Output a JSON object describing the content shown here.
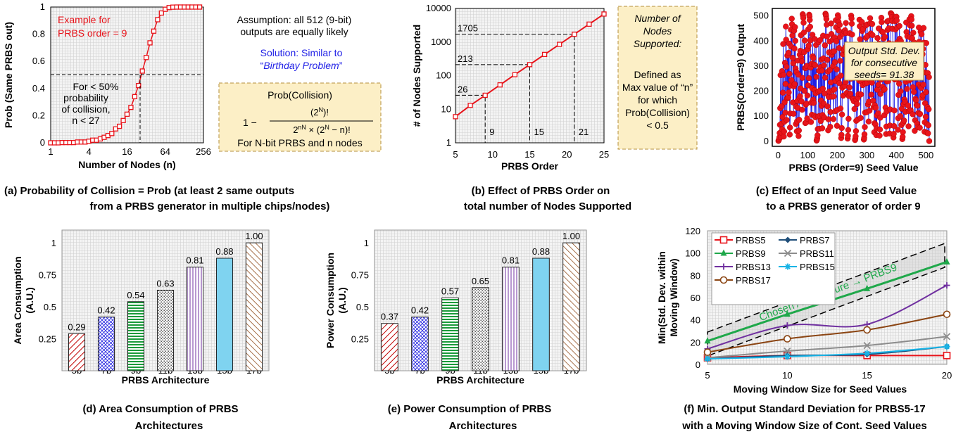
{
  "colors": {
    "red": "#e8141b",
    "blue": "#1f1fe6",
    "green": "#1fa84a",
    "box": "#fcefc6",
    "boxEdge": "#b48f3c",
    "gridBg": "#e6e6e6"
  },
  "panel_a": {
    "annotation": [
      "Example for",
      "PRBS order = 9"
    ],
    "region_note": [
      "For < 50%",
      "probability",
      "of collision,",
      "n < 27"
    ],
    "assumption": [
      "Assumption: all 512 (9-bit)",
      "outputs are equally likely"
    ],
    "solution_line1": "Solution: Similar to",
    "solution_line2_prefix": "“",
    "solution_line2_italic": "Birthday Problem",
    "solution_line2_suffix": "”",
    "formula_title": "Prob(Collision)",
    "formula_lhs": "1 −",
    "formula_num": "(2",
    "formula_num_sup": "N",
    "formula_num_end": ")!",
    "formula_den": "2",
    "formula_den_sup": "nN",
    "formula_den_end": " × (2",
    "formula_den_sup2": "N",
    "formula_den_tail": " − n)!",
    "formula_note": "For N-bit PRBS and n nodes",
    "caption": [
      "(a)  Probability of Collision = Prob (at least 2 same outputs",
      "from a PRBS generator in multiple chips/nodes)"
    ]
  },
  "panel_b": {
    "box_italic": [
      "Number of",
      "Nodes",
      "Supported:"
    ],
    "box_plain": [
      "Defined as",
      "Max value of “n”",
      "for which",
      "Prob(Collision)",
      "< 0.5"
    ],
    "caption": [
      "(b)  Effect of PRBS Order on",
      "total number of Nodes Supported"
    ]
  },
  "panel_c": {
    "box": [
      "Output Std. Dev.",
      "for consecutive",
      "seeds= 91.38"
    ],
    "caption": [
      "(c)  Effect of an Input Seed Value",
      "to a PRBS generator of order 9"
    ]
  },
  "panel_d": {
    "caption": [
      "(d)  Area Consumption of PRBS",
      "Architectures"
    ]
  },
  "panel_e": {
    "caption": [
      "(e)  Power Consumption of PRBS",
      "Architectures"
    ]
  },
  "panel_f": {
    "annotation": "Chosen Architecture → PRBS9",
    "caption": [
      "(f)  Min. Output Standard Deviation for PRBS5-17",
      "with a Moving Window Size of Cont. Seed Values"
    ]
  },
  "chart_data": [
    {
      "id": "a",
      "type": "line",
      "xlabel": "Number of Nodes (n)",
      "ylabel": "Prob (Same PRBS out)",
      "xscale": "log2",
      "xlim": [
        1,
        256
      ],
      "ylim": [
        0,
        1
      ],
      "xticks": [
        1,
        4,
        16,
        64,
        256
      ],
      "xtick_labels": [
        "1",
        "4",
        "16",
        "64",
        "256"
      ],
      "yticks": [
        0,
        0.2,
        0.4,
        0.6,
        0.8,
        1
      ],
      "ytick_labels": [
        "0",
        "0.2",
        "0.4",
        "0.6",
        "0.8",
        "1"
      ],
      "marker_stride": 1.1487,
      "series": [
        {
          "formula": "1 - 512!/(512^n (512-n)!)",
          "color": "#e8141b"
        }
      ],
      "threshold": {
        "y": 0.5,
        "x": 27
      }
    },
    {
      "id": "b",
      "type": "line",
      "xlabel": "PRBS Order",
      "ylabel": "# of Nodes Supported",
      "yscale": "log",
      "xlim": [
        5,
        25
      ],
      "ylim": [
        1,
        10000
      ],
      "xticks": [
        5,
        10,
        15,
        20,
        25
      ],
      "xtick_labels": [
        "5",
        "10",
        "15",
        "20",
        "25"
      ],
      "yticks": [
        1,
        10,
        100,
        1000,
        10000
      ],
      "ytick_labels": [
        "1",
        "10",
        "100",
        "1000",
        "10000"
      ],
      "x": [
        5,
        7,
        9,
        11,
        13,
        15,
        17,
        19,
        21,
        23,
        25
      ],
      "series": [
        {
          "values": [
            6,
            13,
            26,
            53,
            107,
            213,
            427,
            853,
            1705,
            3411,
            6822
          ],
          "color": "#e8141b"
        }
      ],
      "guides": [
        {
          "x": 9,
          "y": 26,
          "label": "26",
          "xlabel": "9"
        },
        {
          "x": 15,
          "y": 213,
          "label": "213",
          "xlabel": "15"
        },
        {
          "x": 21,
          "y": 1705,
          "label": "1705",
          "xlabel": "21"
        }
      ]
    },
    {
      "id": "c",
      "type": "scatter",
      "xlabel": "PRBS (Order=9) Seed Value",
      "ylabel": "PRBS(Order=9) Output",
      "xlim": [
        -20,
        530
      ],
      "ylim": [
        -20,
        530
      ],
      "xticks": [
        0,
        100,
        200,
        300,
        400,
        500
      ],
      "xtick_labels": [
        "0",
        "100",
        "200",
        "300",
        "400",
        "500"
      ],
      "yticks": [
        0,
        100,
        200,
        300,
        400,
        500
      ],
      "ytick_labels": [
        "0",
        "100",
        "200",
        "300",
        "400",
        "500"
      ],
      "series": [
        {
          "description": "511 seed values 1-511 vs. their PRBS-9 outputs (pseudo-random permutation)",
          "marker_color": "#e8141b",
          "line_color": "#1f1fe6"
        }
      ],
      "output_std_dev": 91.38
    },
    {
      "id": "d",
      "type": "bar",
      "xlabel": "PRBS Architecture",
      "ylabel": "Area Consumption (A.U.)",
      "ylim": [
        0,
        1.1
      ],
      "yticks": [
        0.25,
        0.5,
        0.75,
        1
      ],
      "ytick_labels": [
        "0.25",
        "0.5",
        "0.75",
        "1"
      ],
      "categories": [
        "5b",
        "7b",
        "9b",
        "11b",
        "13b",
        "15b",
        "17b"
      ],
      "values": [
        0.29,
        0.42,
        0.54,
        0.63,
        0.81,
        0.88,
        1.0
      ],
      "labels": [
        "0.29",
        "0.42",
        "0.54",
        "0.63",
        "0.81",
        "0.88",
        "1.00"
      ]
    },
    {
      "id": "e",
      "type": "bar",
      "xlabel": "PRBS Architecture",
      "ylabel": "Power Consumption (A.U.)",
      "ylim": [
        0,
        1.1
      ],
      "yticks": [
        0.25,
        0.5,
        0.75,
        1
      ],
      "ytick_labels": [
        "0.25",
        "0.5",
        "0.75",
        "1"
      ],
      "categories": [
        "5b",
        "7b",
        "9b",
        "11b",
        "13b",
        "15b",
        "17b"
      ],
      "values": [
        0.37,
        0.42,
        0.57,
        0.65,
        0.81,
        0.88,
        1.0
      ],
      "labels": [
        "0.37",
        "0.42",
        "0.57",
        "0.65",
        "0.81",
        "0.88",
        "1.00"
      ]
    },
    {
      "id": "f",
      "type": "line",
      "xlabel": "Moving Window Size for Seed Values",
      "ylabel": "Min(Std. Dev. within Moving Window)",
      "xlim": [
        5,
        20
      ],
      "ylim": [
        0,
        120
      ],
      "xticks": [
        5,
        10,
        15,
        20
      ],
      "xtick_labels": [
        "5",
        "10",
        "15",
        "20"
      ],
      "yticks": [
        0,
        20,
        40,
        60,
        80,
        100,
        120
      ],
      "ytick_labels": [
        "0",
        "20",
        "40",
        "60",
        "80",
        "100",
        "120"
      ],
      "legend_position": "top-left",
      "x": [
        5,
        10,
        15,
        20
      ],
      "series": [
        {
          "name": "PRBS5",
          "values": [
            6,
            8,
            8,
            8
          ],
          "color": "#e8141b",
          "marker": "square"
        },
        {
          "name": "PRBS7",
          "values": [
            5,
            8,
            9,
            16
          ],
          "color": "#1f4e79",
          "marker": "diamond"
        },
        {
          "name": "PRBS9",
          "values": [
            21,
            45,
            68,
            92
          ],
          "color": "#1fa84a",
          "marker": "triangle"
        },
        {
          "name": "PRBS11",
          "values": [
            6,
            12,
            17,
            25
          ],
          "color": "#8c8c8c",
          "marker": "x"
        },
        {
          "name": "PRBS13",
          "values": [
            14,
            35,
            36,
            71
          ],
          "color": "#7030a0",
          "marker": "plus"
        },
        {
          "name": "PRBS15",
          "values": [
            5,
            7,
            10,
            16
          ],
          "color": "#19b4e6",
          "marker": "star"
        },
        {
          "name": "PRBS17",
          "values": [
            11,
            23,
            31,
            45
          ],
          "color": "#8b4513",
          "marker": "circle"
        }
      ]
    }
  ]
}
